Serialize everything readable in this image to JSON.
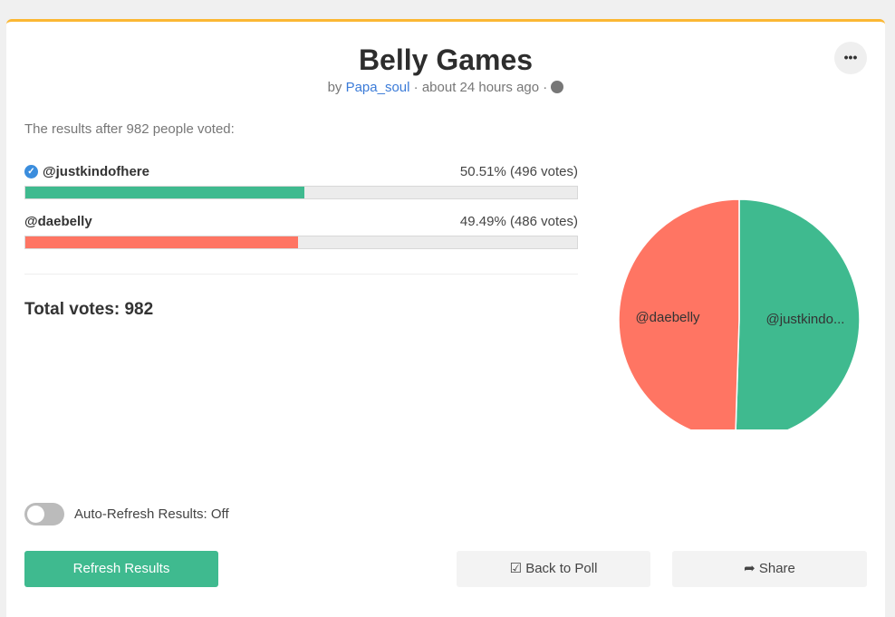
{
  "poll": {
    "title": "Belly Games",
    "by": "by",
    "author": "Papa_soul",
    "time": "· about 24 hours ago ·",
    "more_label": "•••"
  },
  "results": {
    "intro": "The results after 982 people voted:",
    "total": "Total votes: 982",
    "options": [
      {
        "name": "@justkindofhere",
        "pct_text": "50.51% (496 votes)",
        "percent": 50.51,
        "votes": 496,
        "color": "#3fba8f",
        "winner": true,
        "pie_label": "@justkindo..."
      },
      {
        "name": "@daebelly",
        "pct_text": "49.49% (486 votes)",
        "percent": 49.49,
        "votes": 486,
        "color": "#ff7563",
        "winner": false,
        "pie_label": "@daebelly"
      }
    ]
  },
  "auto_refresh": {
    "label": "Auto-Refresh Results: Off",
    "on": false
  },
  "buttons": {
    "refresh": "Refresh Results",
    "back": "Back to Poll",
    "share": "Share"
  },
  "check_icon": "✓"
}
